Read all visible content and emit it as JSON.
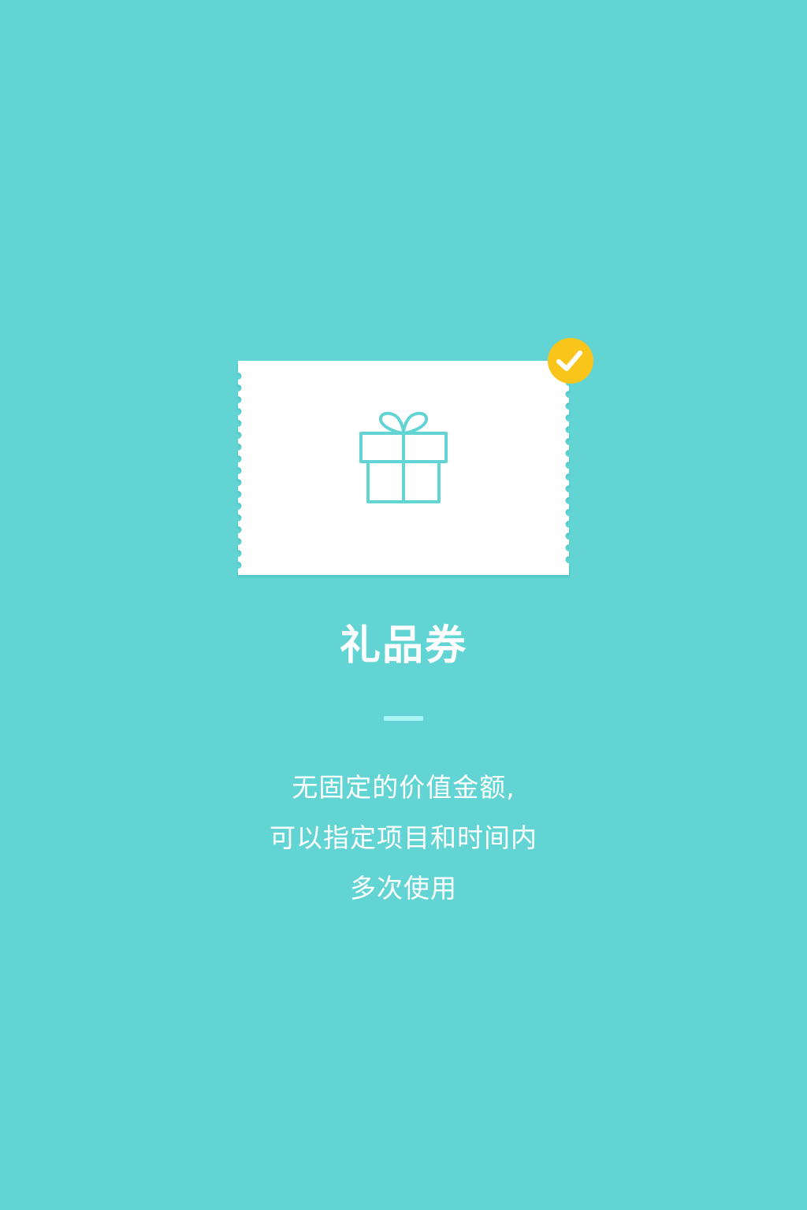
{
  "screen": {
    "background_color": "#62d4d4",
    "accent_color": "#62d4d4",
    "badge_color": "#f9c51a",
    "card_color": "#ffffff",
    "divider_color": "#a9f4f2"
  },
  "voucher": {
    "main_icon": "gift-icon",
    "badge_icon": "check-icon",
    "selected": true
  },
  "title": "礼品券",
  "description": {
    "lines": [
      "无固定的价值金额,",
      "可以指定项目和时间内",
      "多次使用"
    ]
  }
}
